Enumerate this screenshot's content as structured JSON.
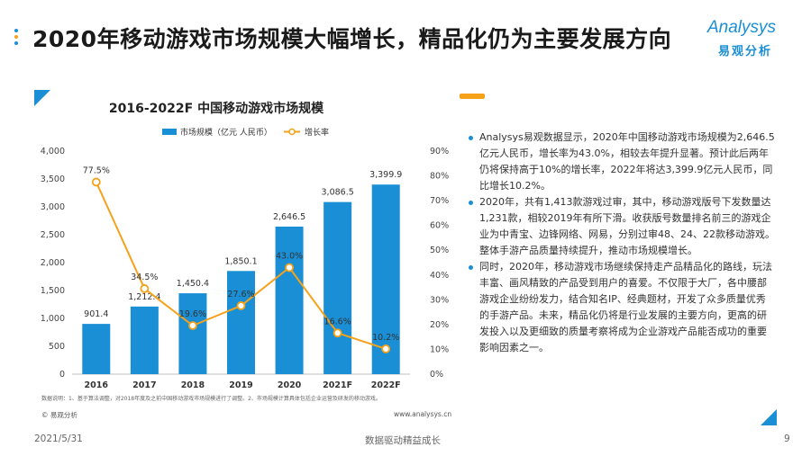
{
  "page": {
    "title": "2020年移动游戏市场规模大幅增长，精品化仍为主要发展方向",
    "logo_brand": "Analysys",
    "logo_cn": "易观分析",
    "date": "2021/5/31",
    "footer_center": "数据驱动精益成长",
    "page_number": "9",
    "source_left": "© 易观分析",
    "source_right": "www.analysys.cn",
    "note": "数据说明：1、基于算法调整，对2018年度及之前中国移动游戏市场规模进行了调整。2、市场规模计算具体包括企业运营及研发的移动游戏。"
  },
  "colors": {
    "bar": "#1a8fd5",
    "line": "#f5a21a",
    "accent": "#1a8fd5"
  },
  "chart_data": {
    "type": "bar",
    "title": "2016-2022F 中国移动游戏市场规模",
    "categories": [
      "2016",
      "2017",
      "2018",
      "2019",
      "2020",
      "2021F",
      "2022F"
    ],
    "series": [
      {
        "name": "市场规模（亿元 人民币）",
        "type": "bar",
        "axis": "left",
        "values": [
          901.4,
          1212.4,
          1450.4,
          1850.1,
          2646.5,
          3086.5,
          3399.9
        ],
        "labels": [
          "901.4",
          "1,212.4",
          "1,450.4",
          "1,850.1",
          "2,646.5",
          "3,086.5",
          "3,399.9"
        ]
      },
      {
        "name": "增长率",
        "type": "line",
        "axis": "right",
        "values": [
          77.5,
          34.5,
          19.6,
          27.6,
          43.0,
          16.6,
          10.2
        ],
        "labels": [
          "77.5%",
          "34.5%",
          "19.6%",
          "27.6%",
          "43.0%",
          "16.6%",
          "10.2%"
        ]
      }
    ],
    "y_left": {
      "min": 0,
      "max": 4000,
      "ticks": [
        "0",
        "500",
        "1,000",
        "1,500",
        "2,000",
        "2,500",
        "3,000",
        "3,500",
        "4,000"
      ]
    },
    "y_right": {
      "min": 0,
      "max": 90,
      "ticks": [
        "0%",
        "10%",
        "20%",
        "30%",
        "40%",
        "50%",
        "60%",
        "70%",
        "80%",
        "90%"
      ]
    },
    "legend_position": "top-center",
    "grid": false
  },
  "text_panel": [
    "Analysys易观数据显示，2020年中国移动游戏市场规模为2,646.5亿元人民币，增长率为43.0%，相较去年提升显著。预计此后两年仍将保持高于10%的增长率，2022年将达3,399.9亿元人民币，同比增长10.2%。",
    "2020年，共有1,413款游戏过审，其中，移动游戏版号下发数量达1,231款，相较2019年有所下滑。收获版号数量排名前三的游戏企业为中青宝、边锋网络、网易，分别过审48、24、22款移动游戏。整体手游产品质量持续提升，推动市场规模增长。",
    "同时，2020年，移动游戏市场继续保持走产品精品化的路线，玩法丰富、画风精致的产品受到用户的喜爱。不仅限于大厂，各中腰部游戏企业纷纷发力，结合知名IP、经典题材，开发了众多质量优秀的手游产品。未来，精品化仍将是行业发展的主要方向，更高的研发投入以及更细致的质量考察将成为企业游戏产品能否成功的重要影响因素之一。"
  ]
}
